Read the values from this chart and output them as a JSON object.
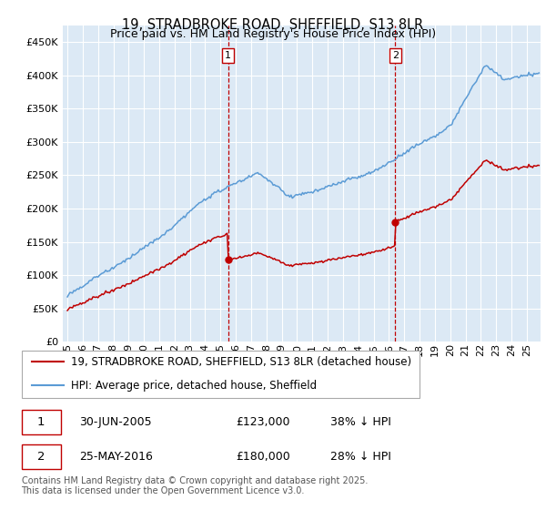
{
  "title": "19, STRADBROKE ROAD, SHEFFIELD, S13 8LR",
  "subtitle": "Price paid vs. HM Land Registry's House Price Index (HPI)",
  "ylim": [
    0,
    475000
  ],
  "yticks": [
    0,
    50000,
    100000,
    150000,
    200000,
    250000,
    300000,
    350000,
    400000,
    450000
  ],
  "ytick_labels": [
    "£0",
    "£50K",
    "£100K",
    "£150K",
    "£200K",
    "£250K",
    "£300K",
    "£350K",
    "£400K",
    "£450K"
  ],
  "hpi_color": "#5b9bd5",
  "price_color": "#c00000",
  "vline_color": "#c00000",
  "shade_color": "#dce9f5",
  "background_color": "#dce9f5",
  "legend_label_red": "19, STRADBROKE ROAD, SHEFFIELD, S13 8LR (detached house)",
  "legend_label_blue": "HPI: Average price, detached house, Sheffield",
  "annotation1_label": "1",
  "annotation1_date": "30-JUN-2005",
  "annotation1_price": "£123,000",
  "annotation1_hpi": "38% ↓ HPI",
  "annotation1_year": 2005.5,
  "annotation2_label": "2",
  "annotation2_date": "25-MAY-2016",
  "annotation2_price": "£180,000",
  "annotation2_hpi": "28% ↓ HPI",
  "annotation2_year": 2016.42,
  "footer": "Contains HM Land Registry data © Crown copyright and database right 2025.\nThis data is licensed under the Open Government Licence v3.0.",
  "title_fontsize": 10.5,
  "tick_fontsize": 8,
  "legend_fontsize": 8.5,
  "ann_fontsize": 9,
  "footer_fontsize": 7
}
